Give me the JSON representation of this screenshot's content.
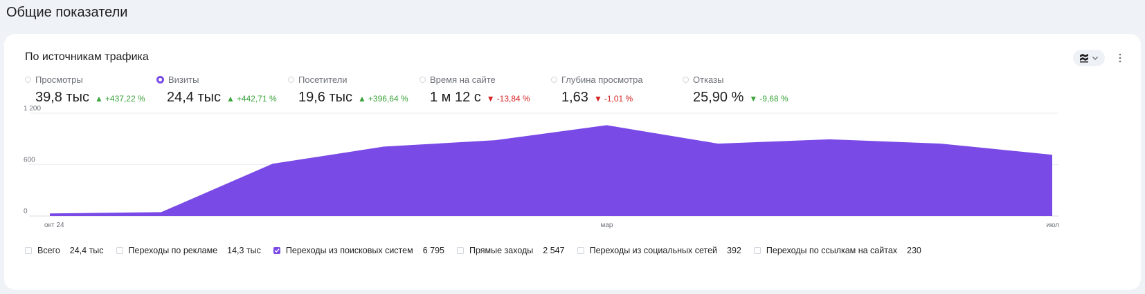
{
  "page": {
    "title": "Общие показатели"
  },
  "card": {
    "title": "По источникам трафика",
    "view_icon": "stacked-area-icon",
    "more_icon": "vertical-ellipsis-icon"
  },
  "metrics": [
    {
      "label": "Просмотры",
      "value": "39,8 тыс",
      "delta": "+437,22 %",
      "trend": "up",
      "selected": false
    },
    {
      "label": "Визиты",
      "value": "24,4 тыс",
      "delta": "+442,71 %",
      "trend": "up",
      "selected": true
    },
    {
      "label": "Посетители",
      "value": "19,6 тыс",
      "delta": "+396,64 %",
      "trend": "up",
      "selected": false
    },
    {
      "label": "Время на сайте",
      "value": "1 м 12 с",
      "delta": "-13,84 %",
      "trend": "down",
      "selected": false
    },
    {
      "label": "Глубина просмотра",
      "value": "1,63",
      "delta": "-1,01 %",
      "trend": "down",
      "selected": false
    },
    {
      "label": "Отказы",
      "value": "25,90 %",
      "delta": "-9,68 %",
      "trend": "down-good",
      "selected": false
    }
  ],
  "colors": {
    "accent": "#7a4ae6",
    "positive": "#3aa33a",
    "negative": "#d32222"
  },
  "chart_data": {
    "type": "area",
    "series": [
      {
        "name": "Переходы из поисковых систем",
        "color": "#7a4ae6",
        "values": [
          30,
          45,
          610,
          810,
          885,
          1060,
          845,
          895,
          845,
          715
        ]
      }
    ],
    "x": [
      0,
      1,
      2,
      3,
      4,
      5,
      6,
      7,
      8,
      9
    ],
    "x_ticks": [
      {
        "at": 0,
        "label": "окт 24"
      },
      {
        "at": 5,
        "label": "мар"
      },
      {
        "at": 9,
        "label": "июл"
      }
    ],
    "y_ticks": [
      "0",
      "600",
      "1 200"
    ],
    "ylim": [
      0,
      1200
    ],
    "grid": true
  },
  "legend": [
    {
      "label": "Всего",
      "value": "24,4 тыс",
      "checked": false
    },
    {
      "label": "Переходы по рекламе",
      "value": "14,3 тыс",
      "checked": false
    },
    {
      "label": "Переходы из поисковых систем",
      "value": "6 795",
      "checked": true
    },
    {
      "label": "Прямые заходы",
      "value": "2 547",
      "checked": false
    },
    {
      "label": "Переходы из социальных сетей",
      "value": "392",
      "checked": false
    },
    {
      "label": "Переходы по ссылкам на сайтах",
      "value": "230",
      "checked": false
    }
  ]
}
